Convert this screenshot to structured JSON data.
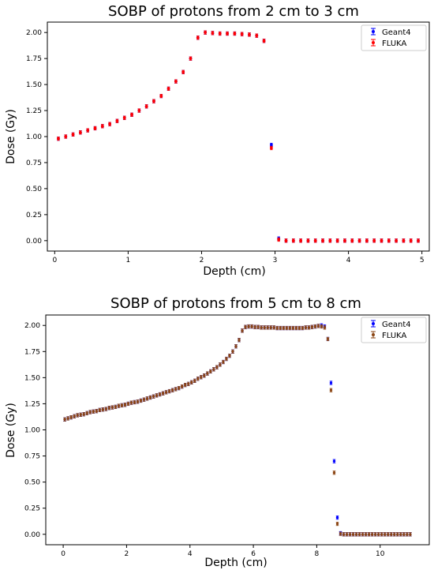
{
  "chart_data": [
    {
      "type": "scatter",
      "title": "SOBP of protons from 2 cm to 3 cm",
      "xlabel": "Depth (cm)",
      "ylabel": "Dose (Gy)",
      "xlim": [
        -0.1,
        5.1
      ],
      "ylim": [
        -0.1,
        2.1
      ],
      "xticks": [
        "0",
        "1",
        "2",
        "3",
        "4",
        "5"
      ],
      "yticks": [
        "0.00",
        "0.25",
        "0.50",
        "0.75",
        "1.00",
        "1.25",
        "1.50",
        "1.75",
        "2.00"
      ],
      "legend_position": "top-right",
      "error_bars": true,
      "x": [
        0.05,
        0.15,
        0.25,
        0.35,
        0.45,
        0.55,
        0.65,
        0.75,
        0.85,
        0.95,
        1.05,
        1.15,
        1.25,
        1.35,
        1.45,
        1.55,
        1.65,
        1.75,
        1.85,
        1.95,
        2.05,
        2.15,
        2.25,
        2.35,
        2.45,
        2.55,
        2.65,
        2.75,
        2.85,
        2.95,
        3.05,
        3.15,
        3.25,
        3.35,
        3.45,
        3.55,
        3.65,
        3.75,
        3.85,
        3.95,
        4.05,
        4.15,
        4.25,
        4.35,
        4.45,
        4.55,
        4.65,
        4.75,
        4.85,
        4.95
      ],
      "series": [
        {
          "name": "Geant4",
          "color": "#0000ff",
          "values": [
            0.98,
            1.0,
            1.02,
            1.04,
            1.06,
            1.08,
            1.1,
            1.12,
            1.15,
            1.18,
            1.21,
            1.25,
            1.29,
            1.34,
            1.39,
            1.46,
            1.53,
            1.62,
            1.75,
            1.95,
            2.0,
            1.995,
            1.99,
            1.99,
            1.99,
            1.985,
            1.98,
            1.97,
            1.92,
            0.92,
            0.02,
            0.0,
            0.0,
            0.0,
            0.0,
            0.0,
            0.0,
            0.0,
            0.0,
            0.0,
            0.0,
            0.0,
            0.0,
            0.0,
            0.0,
            0.0,
            0.0,
            0.0,
            0.0,
            0.0
          ]
        },
        {
          "name": "FLUKA",
          "color": "#ff0000",
          "values": [
            0.98,
            1.0,
            1.02,
            1.04,
            1.06,
            1.08,
            1.1,
            1.12,
            1.15,
            1.18,
            1.21,
            1.25,
            1.29,
            1.34,
            1.39,
            1.46,
            1.53,
            1.62,
            1.75,
            1.95,
            2.0,
            1.995,
            1.99,
            1.99,
            1.99,
            1.985,
            1.98,
            1.97,
            1.92,
            0.89,
            0.01,
            0.0,
            0.0,
            0.0,
            0.0,
            0.0,
            0.0,
            0.0,
            0.0,
            0.0,
            0.0,
            0.0,
            0.0,
            0.0,
            0.0,
            0.0,
            0.0,
            0.0,
            0.0,
            0.0
          ]
        }
      ]
    },
    {
      "type": "scatter",
      "title": "SOBP of protons from 5 cm to 8 cm",
      "xlabel": "Depth (cm)",
      "ylabel": "Dose (Gy)",
      "xlim": [
        -0.55,
        11.55
      ],
      "ylim": [
        -0.1,
        2.1
      ],
      "xticks": [
        "0",
        "2",
        "4",
        "6",
        "8",
        "10"
      ],
      "yticks": [
        "0.00",
        "0.25",
        "0.50",
        "0.75",
        "1.00",
        "1.25",
        "1.50",
        "1.75",
        "2.00"
      ],
      "legend_position": "top-right",
      "error_bars": true,
      "x": [
        0.05,
        0.15,
        0.25,
        0.35,
        0.45,
        0.55,
        0.65,
        0.75,
        0.85,
        0.95,
        1.05,
        1.15,
        1.25,
        1.35,
        1.45,
        1.55,
        1.65,
        1.75,
        1.85,
        1.95,
        2.05,
        2.15,
        2.25,
        2.35,
        2.45,
        2.55,
        2.65,
        2.75,
        2.85,
        2.95,
        3.05,
        3.15,
        3.25,
        3.35,
        3.45,
        3.55,
        3.65,
        3.75,
        3.85,
        3.95,
        4.05,
        4.15,
        4.25,
        4.35,
        4.45,
        4.55,
        4.65,
        4.75,
        4.85,
        4.95,
        5.05,
        5.15,
        5.25,
        5.35,
        5.45,
        5.55,
        5.65,
        5.75,
        5.85,
        5.95,
        6.05,
        6.15,
        6.25,
        6.35,
        6.45,
        6.55,
        6.65,
        6.75,
        6.85,
        6.95,
        7.05,
        7.15,
        7.25,
        7.35,
        7.45,
        7.55,
        7.65,
        7.75,
        7.85,
        7.95,
        8.05,
        8.15,
        8.25,
        8.35,
        8.45,
        8.55,
        8.65,
        8.75,
        8.85,
        8.95,
        9.05,
        9.15,
        9.25,
        9.35,
        9.45,
        9.55,
        9.65,
        9.75,
        9.85,
        9.95,
        10.05,
        10.15,
        10.25,
        10.35,
        10.45,
        10.55,
        10.65,
        10.75,
        10.85,
        10.95
      ],
      "series": [
        {
          "name": "Geant4",
          "color": "#0000ff",
          "values": [
            1.1,
            1.11,
            1.12,
            1.13,
            1.14,
            1.145,
            1.15,
            1.16,
            1.17,
            1.175,
            1.18,
            1.19,
            1.195,
            1.2,
            1.21,
            1.215,
            1.22,
            1.23,
            1.235,
            1.24,
            1.25,
            1.26,
            1.265,
            1.27,
            1.28,
            1.29,
            1.3,
            1.31,
            1.32,
            1.33,
            1.34,
            1.35,
            1.36,
            1.37,
            1.38,
            1.39,
            1.4,
            1.415,
            1.43,
            1.44,
            1.455,
            1.47,
            1.49,
            1.505,
            1.52,
            1.54,
            1.56,
            1.58,
            1.6,
            1.625,
            1.65,
            1.68,
            1.71,
            1.75,
            1.8,
            1.86,
            1.95,
            1.985,
            1.99,
            1.99,
            1.985,
            1.985,
            1.98,
            1.98,
            1.98,
            1.98,
            1.98,
            1.975,
            1.975,
            1.975,
            1.975,
            1.975,
            1.975,
            1.975,
            1.975,
            1.975,
            1.98,
            1.98,
            1.985,
            1.99,
            1.995,
            2.0,
            1.99,
            1.87,
            1.45,
            0.7,
            0.16,
            0.01,
            0.0,
            0.0,
            0.0,
            0.0,
            0.0,
            0.0,
            0.0,
            0.0,
            0.0,
            0.0,
            0.0,
            0.0,
            0.0,
            0.0,
            0.0,
            0.0,
            0.0,
            0.0,
            0.0,
            0.0,
            0.0,
            0.0
          ]
        },
        {
          "name": "FLUKA",
          "color": "#8b4513",
          "values": [
            1.1,
            1.11,
            1.12,
            1.13,
            1.14,
            1.145,
            1.15,
            1.16,
            1.17,
            1.175,
            1.18,
            1.19,
            1.195,
            1.2,
            1.21,
            1.215,
            1.22,
            1.23,
            1.235,
            1.24,
            1.25,
            1.26,
            1.265,
            1.27,
            1.28,
            1.29,
            1.3,
            1.31,
            1.32,
            1.33,
            1.34,
            1.35,
            1.36,
            1.37,
            1.38,
            1.39,
            1.4,
            1.415,
            1.43,
            1.44,
            1.455,
            1.47,
            1.49,
            1.505,
            1.52,
            1.54,
            1.56,
            1.58,
            1.6,
            1.625,
            1.65,
            1.68,
            1.71,
            1.75,
            1.8,
            1.86,
            1.95,
            1.985,
            1.99,
            1.99,
            1.985,
            1.985,
            1.98,
            1.98,
            1.98,
            1.98,
            1.98,
            1.975,
            1.975,
            1.975,
            1.975,
            1.975,
            1.975,
            1.975,
            1.975,
            1.975,
            1.98,
            1.98,
            1.985,
            1.99,
            1.995,
            1.99,
            1.98,
            1.87,
            1.38,
            0.59,
            0.1,
            0.005,
            0.0,
            0.0,
            0.0,
            0.0,
            0.0,
            0.0,
            0.0,
            0.0,
            0.0,
            0.0,
            0.0,
            0.0,
            0.0,
            0.0,
            0.0,
            0.0,
            0.0,
            0.0,
            0.0,
            0.0,
            0.0,
            0.0
          ]
        }
      ]
    }
  ]
}
